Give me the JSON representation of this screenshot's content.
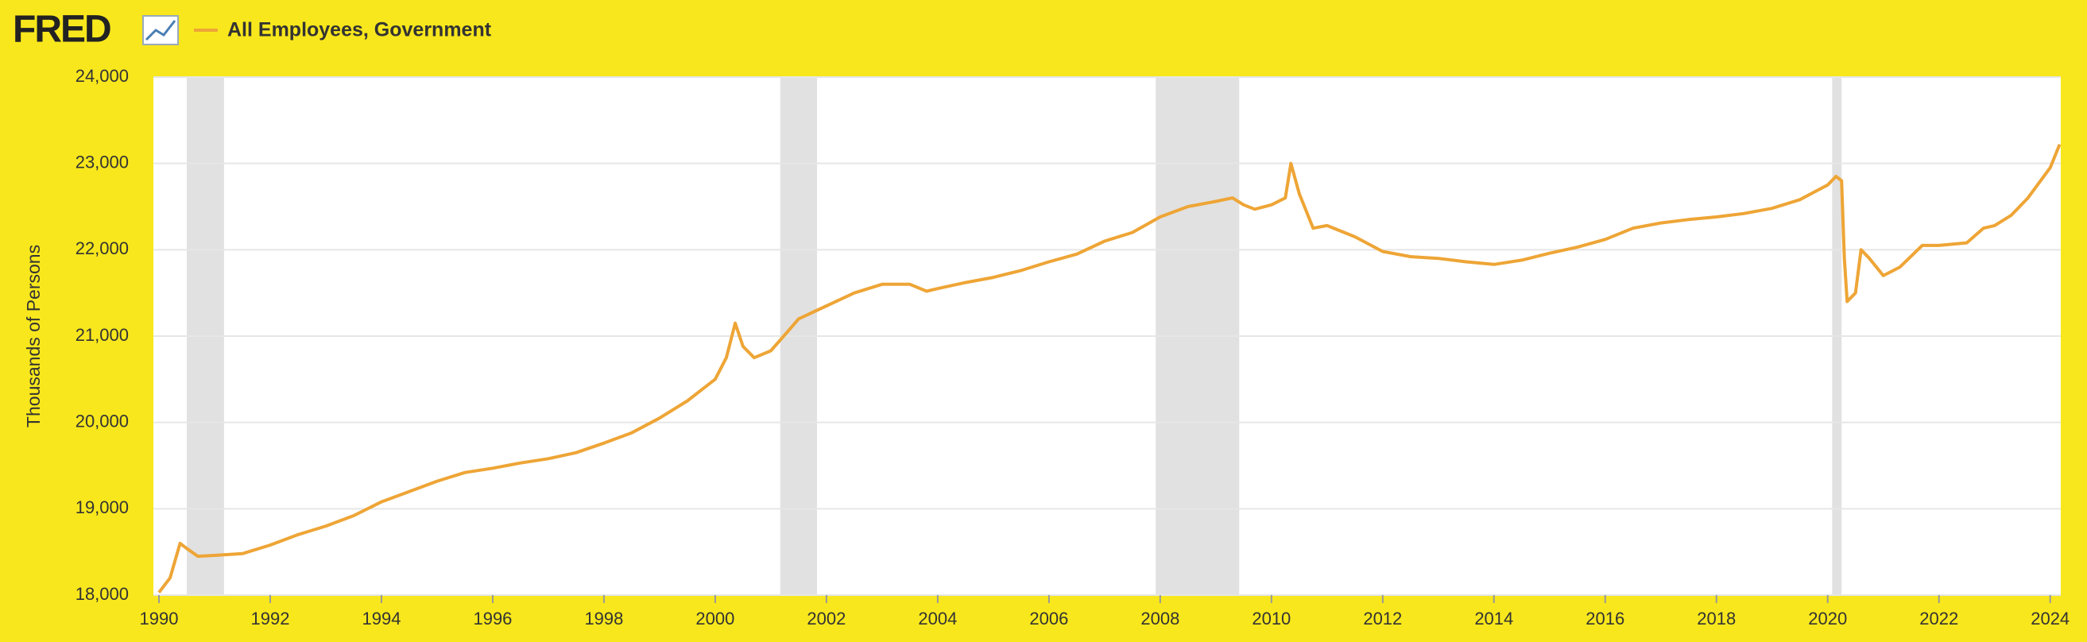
{
  "logo": "FRED",
  "chart_data": {
    "type": "line",
    "y_label": "Thousands of Persons",
    "series": [
      {
        "name": "All Employees, Government",
        "color": "#eea536",
        "values": [
          18030,
          18200,
          18600,
          18540,
          18450,
          18460,
          18480,
          18580,
          18700,
          18800,
          18920,
          19080,
          19200,
          19320,
          19420,
          19470,
          19530,
          19580,
          19650,
          19760,
          19880,
          20050,
          20250,
          20500,
          20750,
          21150,
          20880,
          20750,
          20830,
          21050,
          21200,
          21350,
          21500,
          21600,
          21600,
          21520,
          21550,
          21620,
          21680,
          21760,
          21860,
          21950,
          22100,
          22200,
          22380,
          22500,
          22560,
          22600,
          22520,
          22470,
          22520,
          22600,
          23000,
          22650,
          22250,
          22280,
          22150,
          21980,
          21920,
          21900,
          21860,
          21830,
          21880,
          21960,
          22030,
          22120,
          22250,
          22310,
          22350,
          22380,
          22420,
          22480,
          22580,
          22750,
          22850,
          22800,
          21900,
          21400,
          21500,
          22000,
          21900,
          21700,
          21800,
          22050,
          22050,
          22080,
          22250,
          22280,
          22400,
          22600,
          22950,
          23220
        ]
      }
    ],
    "x": [
      1990.0,
      1990.2,
      1990.38,
      1990.5,
      1990.7,
      1991.0,
      1991.5,
      1992.0,
      1992.5,
      1993.0,
      1993.5,
      1994.0,
      1994.5,
      1995.0,
      1995.5,
      1996.0,
      1996.5,
      1997.0,
      1997.5,
      1998.0,
      1998.5,
      1999.0,
      1999.5,
      2000.0,
      2000.2,
      2000.36,
      2000.5,
      2000.7,
      2001.0,
      2001.3,
      2001.5,
      2002.0,
      2002.5,
      2003.0,
      2003.5,
      2003.8,
      2004.0,
      2004.5,
      2005.0,
      2005.5,
      2006.0,
      2006.5,
      2007.0,
      2007.5,
      2008.0,
      2008.5,
      2009.0,
      2009.3,
      2009.5,
      2009.7,
      2010.0,
      2010.25,
      2010.35,
      2010.5,
      2010.75,
      2011.0,
      2011.5,
      2012.0,
      2012.5,
      2013.0,
      2013.5,
      2014.0,
      2014.5,
      2015.0,
      2015.5,
      2016.0,
      2016.5,
      2017.0,
      2017.5,
      2018.0,
      2018.5,
      2019.0,
      2019.5,
      2020.0,
      2020.15,
      2020.25,
      2020.3,
      2020.35,
      2020.5,
      2020.6,
      2020.75,
      2021.0,
      2021.3,
      2021.7,
      2022.0,
      2022.5,
      2022.8,
      2023.0,
      2023.3,
      2023.6,
      2024.0,
      2024.17
    ],
    "recessions": [
      [
        1990.5,
        1991.17
      ],
      [
        2001.17,
        2001.83
      ],
      [
        2007.92,
        2009.42
      ],
      [
        2020.08,
        2020.25
      ]
    ],
    "recession_color": "#e1e1e1",
    "xlim": [
      1989.9,
      2024.19
    ],
    "xticks": [
      1990,
      1992,
      1994,
      1996,
      1998,
      2000,
      2002,
      2004,
      2006,
      2008,
      2010,
      2012,
      2014,
      2016,
      2018,
      2020,
      2022,
      2024
    ],
    "ylim": [
      18000,
      24000
    ],
    "yticks": [
      {
        "value": 18000,
        "label": "18,000"
      },
      {
        "value": 19000,
        "label": "19,000"
      },
      {
        "value": 20000,
        "label": "20,000"
      },
      {
        "value": 21000,
        "label": "21,000"
      },
      {
        "value": 22000,
        "label": "22,000"
      },
      {
        "value": 23000,
        "label": "23,000"
      },
      {
        "value": 24000,
        "label": "24,000"
      }
    ],
    "grid": true
  }
}
